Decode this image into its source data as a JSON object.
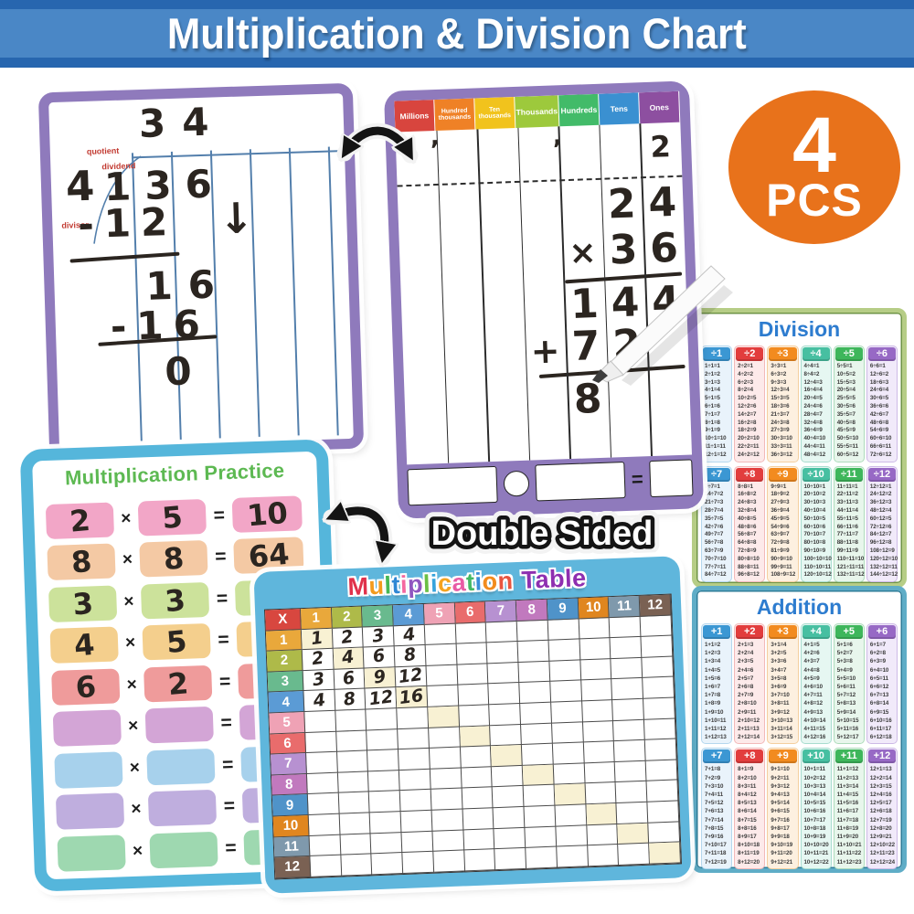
{
  "banner": {
    "title": "Multiplication & Division Chart"
  },
  "badge": {
    "count": "4",
    "unit": "PCS",
    "color": "#e8721b"
  },
  "double_sided": "Double Sided",
  "long_division_board": {
    "labels": {
      "quotient": "quotient",
      "dividend": "dividend",
      "divisor": "divisor"
    },
    "quotient": "34",
    "divisor": "4",
    "dividend": "136",
    "step1": "-12",
    "arrow": "↓",
    "step2": "16",
    "step3": "-16",
    "result": "0"
  },
  "place_value_board": {
    "headers": [
      {
        "label": "Millions",
        "color": "#d8453e"
      },
      {
        "label": "Hundred thousands",
        "color": "#ef8126"
      },
      {
        "label": "Ten thousands",
        "color": "#f1c31d"
      },
      {
        "label": "Thousands",
        "color": "#9dc93c"
      },
      {
        "label": "Hundreds",
        "color": "#42bb69"
      },
      {
        "label": "Tens",
        "color": "#3a90d1"
      },
      {
        "label": "Ones",
        "color": "#8d4fa0"
      }
    ],
    "comma": ",",
    "written_ones": "2",
    "factor_top": "24",
    "times_symbol": "×",
    "factor_bottom": "36",
    "partial1": "144",
    "plus_symbol": "+",
    "partial2": "72",
    "answer_digit": "8",
    "equals": "="
  },
  "chart_palette": {
    "header_colors": [
      "#3b97d3",
      "#e23d3d",
      "#f28b1f",
      "#47bfa1",
      "#3eb65b",
      "#9769c5"
    ],
    "tints": [
      "#e9f3fb",
      "#fdeaea",
      "#fdf0e0",
      "#e6f7f2",
      "#e8f6ec",
      "#f1eafa"
    ],
    "tint_borders": [
      "#b5d7ee",
      "#f2b9b9",
      "#f4cf9f",
      "#a8ddcf",
      "#aedcbc",
      "#cdbae6"
    ]
  },
  "division_chart": {
    "title": "Division",
    "columns": [
      {
        "header": "÷1",
        "facts": [
          "1÷1=1",
          "2÷1=2",
          "3÷1=3",
          "4÷1=4",
          "5÷1=5",
          "6÷1=6",
          "7÷1=7",
          "8÷1=8",
          "9÷1=9",
          "10÷1=10",
          "11÷1=11",
          "12÷1=12"
        ]
      },
      {
        "header": "÷2",
        "facts": [
          "2÷2=1",
          "4÷2=2",
          "6÷2=3",
          "8÷2=4",
          "10÷2=5",
          "12÷2=6",
          "14÷2=7",
          "16÷2=8",
          "18÷2=9",
          "20÷2=10",
          "22÷2=11",
          "24÷2=12"
        ]
      },
      {
        "header": "÷3",
        "facts": [
          "3÷3=1",
          "6÷3=2",
          "9÷3=3",
          "12÷3=4",
          "15÷3=5",
          "18÷3=6",
          "21÷3=7",
          "24÷3=8",
          "27÷3=9",
          "30÷3=10",
          "33÷3=11",
          "36÷3=12"
        ]
      },
      {
        "header": "÷4",
        "facts": [
          "4÷4=1",
          "8÷4=2",
          "12÷4=3",
          "16÷4=4",
          "20÷4=5",
          "24÷4=6",
          "28÷4=7",
          "32÷4=8",
          "36÷4=9",
          "40÷4=10",
          "44÷4=11",
          "48÷4=12"
        ]
      },
      {
        "header": "÷5",
        "facts": [
          "5÷5=1",
          "10÷5=2",
          "15÷5=3",
          "20÷5=4",
          "25÷5=5",
          "30÷5=6",
          "35÷5=7",
          "40÷5=8",
          "45÷5=9",
          "50÷5=10",
          "55÷5=11",
          "60÷5=12"
        ]
      },
      {
        "header": "÷6",
        "facts": [
          "6÷6=1",
          "12÷6=2",
          "18÷6=3",
          "24÷6=4",
          "30÷6=5",
          "36÷6=6",
          "42÷6=7",
          "48÷6=8",
          "54÷6=9",
          "60÷6=10",
          "66÷6=11",
          "72÷6=12"
        ]
      },
      {
        "header": "÷7",
        "facts": [
          "7÷7=1",
          "14÷7=2",
          "21÷7=3",
          "28÷7=4",
          "35÷7=5",
          "42÷7=6",
          "49÷7=7",
          "56÷7=8",
          "63÷7=9",
          "70÷7=10",
          "77÷7=11",
          "84÷7=12"
        ]
      },
      {
        "header": "÷8",
        "facts": [
          "8÷8=1",
          "16÷8=2",
          "24÷8=3",
          "32÷8=4",
          "40÷8=5",
          "48÷8=6",
          "56÷8=7",
          "64÷8=8",
          "72÷8=9",
          "80÷8=10",
          "88÷8=11",
          "96÷8=12"
        ]
      },
      {
        "header": "÷9",
        "facts": [
          "9÷9=1",
          "18÷9=2",
          "27÷9=3",
          "36÷9=4",
          "45÷9=5",
          "54÷9=6",
          "63÷9=7",
          "72÷9=8",
          "81÷9=9",
          "90÷9=10",
          "99÷9=11",
          "108÷9=12"
        ]
      },
      {
        "header": "÷10",
        "facts": [
          "10÷10=1",
          "20÷10=2",
          "30÷10=3",
          "40÷10=4",
          "50÷10=5",
          "60÷10=6",
          "70÷10=7",
          "80÷10=8",
          "90÷10=9",
          "100÷10=10",
          "110÷10=11",
          "120÷10=12"
        ]
      },
      {
        "header": "÷11",
        "facts": [
          "11÷11=1",
          "22÷11=2",
          "33÷11=3",
          "44÷11=4",
          "55÷11=5",
          "66÷11=6",
          "77÷11=7",
          "88÷11=8",
          "99÷11=9",
          "110÷11=10",
          "121÷11=11",
          "132÷11=12"
        ]
      },
      {
        "header": "÷12",
        "facts": [
          "12÷12=1",
          "24÷12=2",
          "36÷12=3",
          "48÷12=4",
          "60÷12=5",
          "72÷12=6",
          "84÷12=7",
          "96÷12=8",
          "108÷12=9",
          "120÷12=10",
          "132÷12=11",
          "144÷12=12"
        ]
      }
    ]
  },
  "addition_chart": {
    "title": "Addition",
    "columns": [
      {
        "header": "+1",
        "facts": [
          "1+1=2",
          "1+2=3",
          "1+3=4",
          "1+4=5",
          "1+5=6",
          "1+6=7",
          "1+7=8",
          "1+8=9",
          "1+9=10",
          "1+10=11",
          "1+11=12",
          "1+12=13"
        ]
      },
      {
        "header": "+2",
        "facts": [
          "2+1=3",
          "2+2=4",
          "2+3=5",
          "2+4=6",
          "2+5=7",
          "2+6=8",
          "2+7=9",
          "2+8=10",
          "2+9=11",
          "2+10=12",
          "2+11=13",
          "2+12=14"
        ]
      },
      {
        "header": "+3",
        "facts": [
          "3+1=4",
          "3+2=5",
          "3+3=6",
          "3+4=7",
          "3+5=8",
          "3+6=9",
          "3+7=10",
          "3+8=11",
          "3+9=12",
          "3+10=13",
          "3+11=14",
          "3+12=15"
        ]
      },
      {
        "header": "+4",
        "facts": [
          "4+1=5",
          "4+2=6",
          "4+3=7",
          "4+4=8",
          "4+5=9",
          "4+6=10",
          "4+7=11",
          "4+8=12",
          "4+9=13",
          "4+10=14",
          "4+11=15",
          "4+12=16"
        ]
      },
      {
        "header": "+5",
        "facts": [
          "5+1=6",
          "5+2=7",
          "5+3=8",
          "5+4=9",
          "5+5=10",
          "5+6=11",
          "5+7=12",
          "5+8=13",
          "5+9=14",
          "5+10=15",
          "5+11=16",
          "5+12=17"
        ]
      },
      {
        "header": "+6",
        "facts": [
          "6+1=7",
          "6+2=8",
          "6+3=9",
          "6+4=10",
          "6+5=11",
          "6+6=12",
          "6+7=13",
          "6+8=14",
          "6+9=15",
          "6+10=16",
          "6+11=17",
          "6+12=18"
        ]
      },
      {
        "header": "+7",
        "facts": [
          "7+1=8",
          "7+2=9",
          "7+3=10",
          "7+4=11",
          "7+5=12",
          "7+6=13",
          "7+7=14",
          "7+8=15",
          "7+9=16",
          "7+10=17",
          "7+11=18",
          "7+12=19"
        ]
      },
      {
        "header": "+8",
        "facts": [
          "8+1=9",
          "8+2=10",
          "8+3=11",
          "8+4=12",
          "8+5=13",
          "8+6=14",
          "8+7=15",
          "8+8=16",
          "8+9=17",
          "8+10=18",
          "8+11=19",
          "8+12=20"
        ]
      },
      {
        "header": "+9",
        "facts": [
          "9+1=10",
          "9+2=11",
          "9+3=12",
          "9+4=13",
          "9+5=14",
          "9+6=15",
          "9+7=16",
          "9+8=17",
          "9+9=18",
          "9+10=19",
          "9+11=20",
          "9+12=21"
        ]
      },
      {
        "header": "+10",
        "facts": [
          "10+1=11",
          "10+2=12",
          "10+3=13",
          "10+4=14",
          "10+5=15",
          "10+6=16",
          "10+7=17",
          "10+8=18",
          "10+9=19",
          "10+10=20",
          "10+11=21",
          "10+12=22"
        ]
      },
      {
        "header": "+11",
        "facts": [
          "11+1=12",
          "11+2=13",
          "11+3=14",
          "11+4=15",
          "11+5=16",
          "11+6=17",
          "11+7=18",
          "11+8=19",
          "11+9=20",
          "11+10=21",
          "11+11=22",
          "11+12=23"
        ]
      },
      {
        "header": "+12",
        "facts": [
          "12+1=13",
          "12+2=14",
          "12+3=15",
          "12+4=16",
          "12+5=17",
          "12+6=18",
          "12+7=19",
          "12+8=20",
          "12+9=21",
          "12+10=22",
          "12+11=23",
          "12+12=24"
        ]
      }
    ]
  },
  "practice_card": {
    "title": "Multiplication Practice",
    "times": "×",
    "equals": "=",
    "rows": [
      {
        "a": "2",
        "b": "5",
        "result": "10",
        "color": "#f2a6c7"
      },
      {
        "a": "8",
        "b": "8",
        "result": "64",
        "color": "#f4c9a4"
      },
      {
        "a": "3",
        "b": "3",
        "result": "",
        "color": "#cce29b"
      },
      {
        "a": "4",
        "b": "5",
        "result": "",
        "color": "#f4cf8d"
      },
      {
        "a": "6",
        "b": "2",
        "result": "",
        "color": "#ef9b9b"
      },
      {
        "a": "",
        "b": "",
        "result": "",
        "color": "#d3a5d6"
      },
      {
        "a": "",
        "b": "",
        "result": "",
        "color": "#a7d1ec"
      },
      {
        "a": "",
        "b": "",
        "result": "",
        "color": "#bfaede"
      },
      {
        "a": "",
        "b": "",
        "result": "",
        "color": "#9ed8b0"
      }
    ]
  },
  "mult_table": {
    "title_letters": [
      {
        "ch": "M",
        "color": "#e0314b"
      },
      {
        "ch": "u",
        "color": "#f39b1d"
      },
      {
        "ch": "l",
        "color": "#46b754"
      },
      {
        "ch": "t",
        "color": "#2f87d4"
      },
      {
        "ch": "i",
        "color": "#f4679f"
      },
      {
        "ch": "p",
        "color": "#9056c0"
      },
      {
        "ch": "l",
        "color": "#6abf45"
      },
      {
        "ch": "i",
        "color": "#35a3dc"
      },
      {
        "ch": "c",
        "color": "#f5a31f"
      },
      {
        "ch": "a",
        "color": "#e85ca5"
      },
      {
        "ch": "t",
        "color": "#43b864"
      },
      {
        "ch": "i",
        "color": "#3a8fd9"
      },
      {
        "ch": "o",
        "color": "#f28c1e"
      },
      {
        "ch": "n",
        "color": "#e8543f"
      }
    ],
    "title_word2": {
      "text": "Table",
      "color": "#8e2fb0"
    },
    "corner_label": "X",
    "corner_color": "#d8473f",
    "diagonal_highlight_color": "#f8f1d3",
    "columns": [
      {
        "label": "1",
        "color": "#e9a83b"
      },
      {
        "label": "2",
        "color": "#aeba49"
      },
      {
        "label": "3",
        "color": "#69ba8e"
      },
      {
        "label": "4",
        "color": "#5b9bd5"
      },
      {
        "label": "5",
        "color": "#efa2b5"
      },
      {
        "label": "6",
        "color": "#e96c6c"
      },
      {
        "label": "7",
        "color": "#b791d1"
      },
      {
        "label": "8",
        "color": "#c179be"
      },
      {
        "label": "9",
        "color": "#4f93c9"
      },
      {
        "label": "10",
        "color": "#e0861f"
      },
      {
        "label": "11",
        "color": "#7f99ac"
      },
      {
        "label": "12",
        "color": "#7a6153"
      }
    ],
    "rows": [
      {
        "label": "1",
        "values": [
          "1",
          "2",
          "3",
          "4"
        ]
      },
      {
        "label": "2",
        "values": [
          "2",
          "4",
          "6",
          "8"
        ]
      },
      {
        "label": "3",
        "values": [
          "3",
          "6",
          "9",
          "12"
        ]
      },
      {
        "label": "4",
        "values": [
          "4",
          "8",
          "12",
          "16"
        ]
      },
      {
        "label": "5",
        "values": []
      },
      {
        "label": "6",
        "values": []
      },
      {
        "label": "7",
        "values": []
      },
      {
        "label": "8",
        "values": []
      },
      {
        "label": "9",
        "values": []
      },
      {
        "label": "10",
        "values": []
      },
      {
        "label": "11",
        "values": []
      },
      {
        "label": "12",
        "values": []
      }
    ]
  }
}
